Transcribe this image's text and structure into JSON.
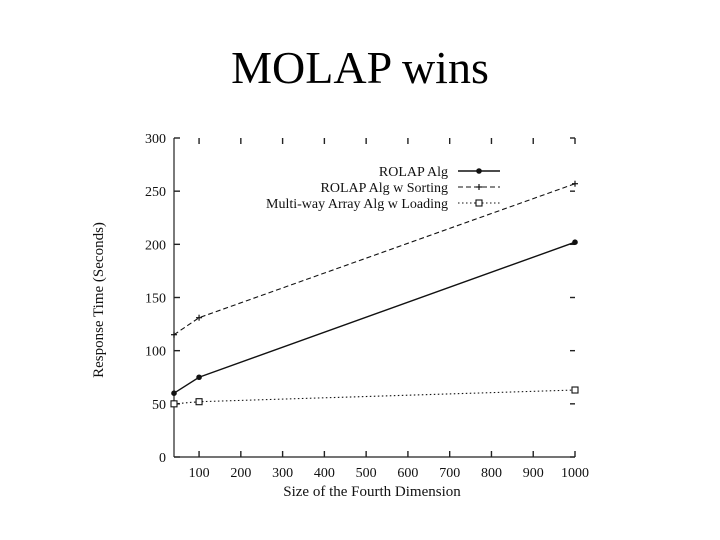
{
  "slide": {
    "title": "MOLAP wins"
  },
  "chart_data": {
    "type": "line",
    "xlabel": "Size of the Fourth Dimension",
    "ylabel": "Response Time (Seconds)",
    "xlim": [
      40,
      1000
    ],
    "ylim": [
      0,
      300
    ],
    "x_ticks": [
      100,
      200,
      300,
      400,
      500,
      600,
      700,
      800,
      900,
      1000
    ],
    "y_ticks": [
      0,
      50,
      100,
      150,
      200,
      250,
      300
    ],
    "grid": false,
    "legend_position": "top-right",
    "series": [
      {
        "name": "ROLAP Alg",
        "style": "solid",
        "marker": "dot",
        "x": [
          40,
          100,
          1000
        ],
        "y": [
          60,
          75,
          202
        ]
      },
      {
        "name": "ROLAP Alg w Sorting",
        "style": "dashed",
        "marker": "plus",
        "x": [
          40,
          100,
          1000
        ],
        "y": [
          115,
          131,
          257
        ]
      },
      {
        "name": "Multi-way Array Alg w Loading",
        "style": "dotted",
        "marker": "square",
        "x": [
          40,
          100,
          1000
        ],
        "y": [
          50,
          52,
          63
        ]
      }
    ]
  }
}
